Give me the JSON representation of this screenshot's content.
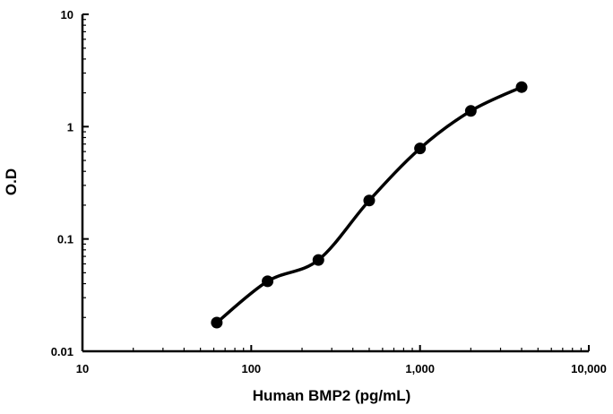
{
  "chart_data": {
    "type": "line",
    "title": "",
    "xlabel": "Human BMP2 (pg/mL)",
    "ylabel": "O.D",
    "xscale": "log",
    "yscale": "log",
    "xlim": [
      10,
      10000
    ],
    "ylim": [
      0.01,
      10
    ],
    "x_ticks": [
      10,
      100,
      1000,
      10000
    ],
    "x_tick_labels": [
      "10",
      "100",
      "1,000",
      "10,000"
    ],
    "y_ticks": [
      0.01,
      0.1,
      1,
      10
    ],
    "y_tick_labels": [
      "0.01",
      "0.1",
      "1",
      "10"
    ],
    "grid": false,
    "legend": "none",
    "series": [
      {
        "color": "#000000",
        "marker": "circle",
        "smooth": true,
        "x": [
          62.5,
          125,
          250,
          500,
          1000,
          2000,
          4000
        ],
        "y": [
          0.018,
          0.042,
          0.065,
          0.22,
          0.64,
          1.38,
          2.25
        ]
      }
    ]
  }
}
